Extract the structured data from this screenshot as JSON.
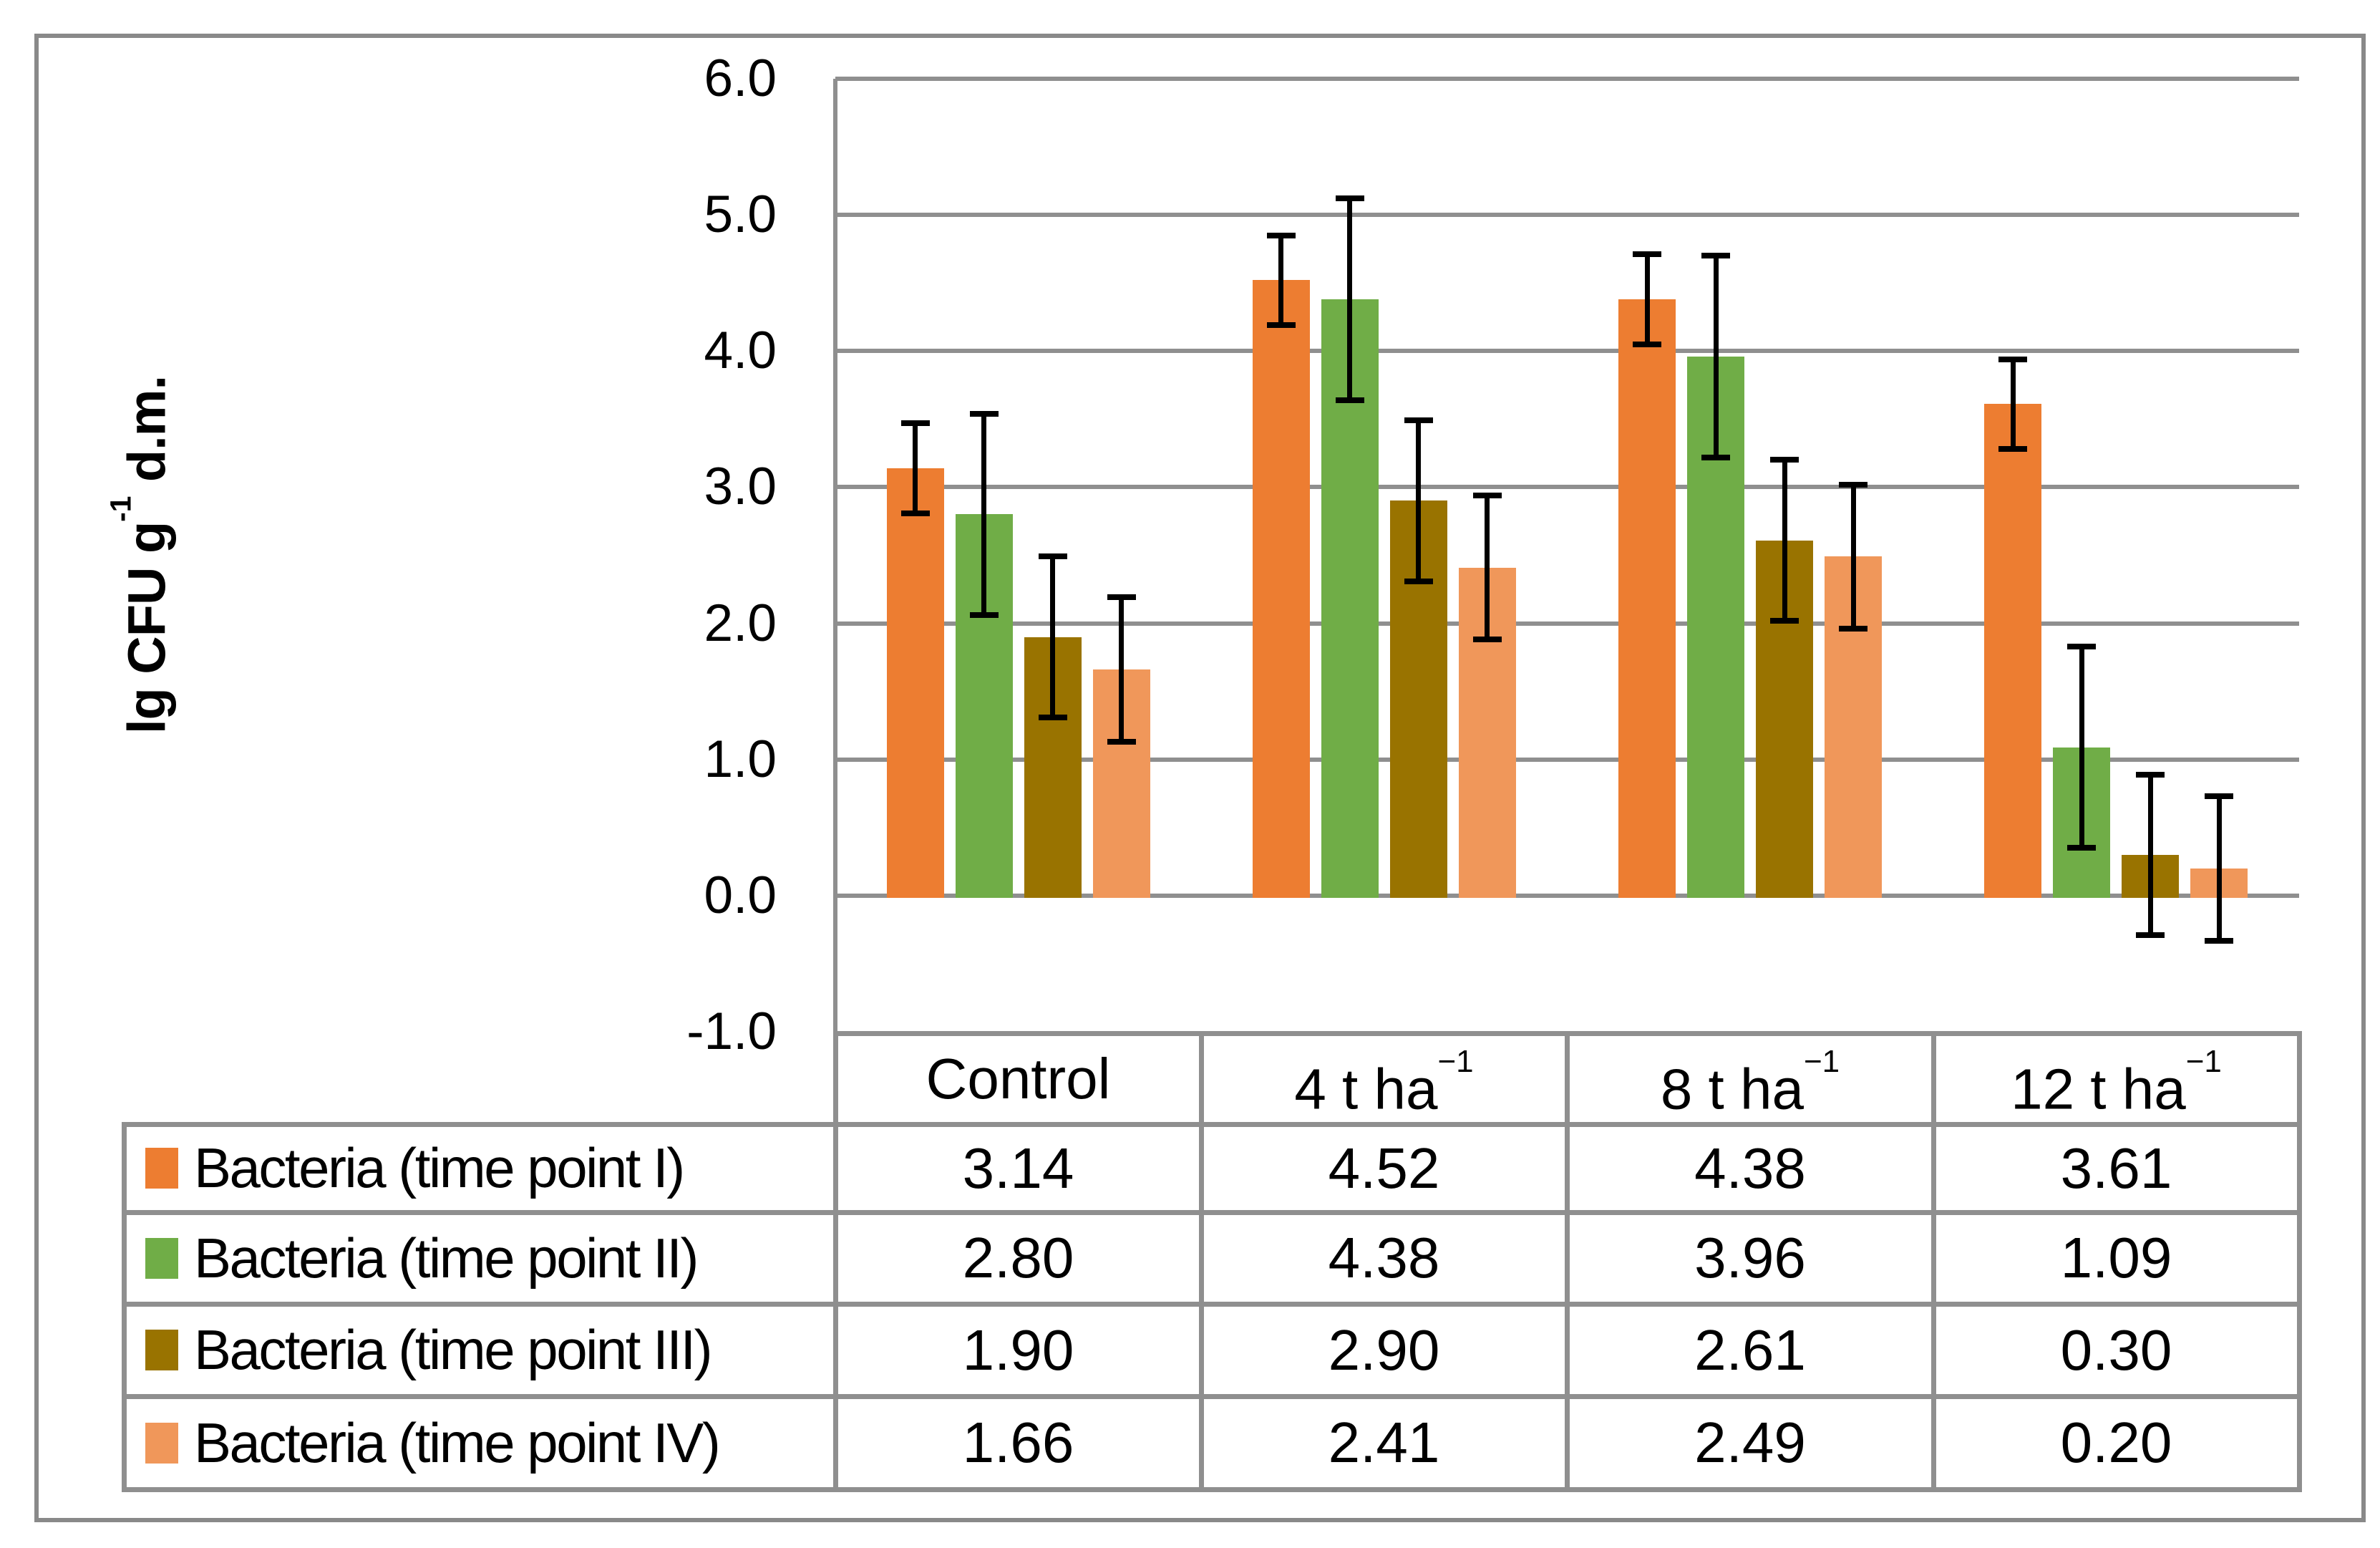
{
  "labels": {
    "y_axis_main": "lg CFU g",
    "y_axis_sup": "-1",
    "y_axis_rest": " d.m."
  },
  "chart_data": {
    "type": "bar",
    "title": "",
    "xlabel": "",
    "ylabel": "lg CFU g-1 d.m.",
    "ylim": [
      -1.0,
      6.0
    ],
    "ytick_step": 1.0,
    "yticks": [
      "6.0",
      "5.0",
      "4.0",
      "3.0",
      "2.0",
      "1.0",
      "0.0",
      "-1.0"
    ],
    "grid": true,
    "legend_position": "table-below",
    "categories": [
      "Control",
      "4 t ha-1",
      "8 t ha-1",
      "12 t ha-1"
    ],
    "series": [
      {
        "name": "Bacteria (time point I)",
        "color": "#ED7D31",
        "values": [
          3.14,
          4.52,
          4.38,
          3.61
        ],
        "error": 0.33
      },
      {
        "name": "Bacteria (time point II)",
        "color": "#70AD47",
        "values": [
          2.8,
          4.38,
          3.96,
          1.09
        ],
        "error": 0.74
      },
      {
        "name": "Bacteria (time point III)",
        "color": "#997300",
        "values": [
          1.9,
          2.9,
          2.61,
          0.3
        ],
        "error": 0.59
      },
      {
        "name": "Bacteria (time point IV)",
        "color": "#F0975A",
        "values": [
          1.66,
          2.41,
          2.49,
          0.2
        ],
        "error": 0.53
      }
    ]
  },
  "table": {
    "col_headers": [
      {
        "text": "Control",
        "sup": ""
      },
      {
        "text": "4 t ha",
        "sup": "−1"
      },
      {
        "text": "8 t ha",
        "sup": "−1"
      },
      {
        "text": "12 t ha",
        "sup": "−1"
      }
    ],
    "rows": [
      {
        "legend": "Bacteria (time point I)",
        "cells": [
          "3.14",
          "4.52",
          "4.38",
          "3.61"
        ]
      },
      {
        "legend": "Bacteria (time point II)",
        "cells": [
          "2.80",
          "4.38",
          "3.96",
          "1.09"
        ]
      },
      {
        "legend": "Bacteria (time point III)",
        "cells": [
          "1.90",
          "2.90",
          "2.61",
          "0.30"
        ]
      },
      {
        "legend": "Bacteria (time point IV)",
        "cells": [
          "1.66",
          "2.41",
          "2.49",
          "0.20"
        ]
      }
    ]
  },
  "colors": {
    "grid": "#8F8F8F",
    "axis": "#8F8F8F",
    "table_border": "#8F8F8F",
    "outer_border": "#898989",
    "error_bar": "#000000",
    "background": "#FFFFFF"
  }
}
